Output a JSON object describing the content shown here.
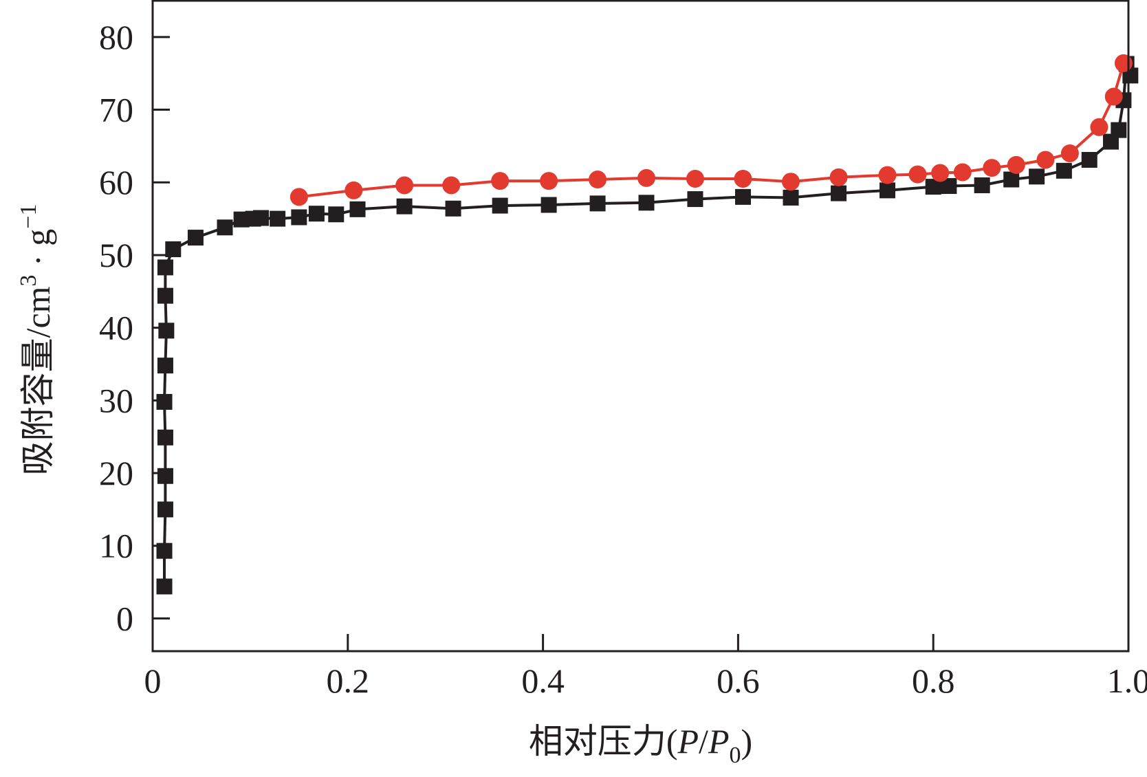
{
  "chart_data": {
    "type": "scatter",
    "xlabel": "相对压力(P/P0)",
    "xlabel_parts": {
      "main": "相对压力(",
      "p1": "P",
      "slash": "/",
      "p2": "P",
      "sub": "0",
      "close": ")"
    },
    "ylabel": "吸附容量/cm3 · g-1",
    "ylabel_parts": {
      "main": "吸附容量/cm",
      "sup1": "3",
      "dot": " · g",
      "sup2": "−1"
    },
    "xlim": [
      0,
      1.0
    ],
    "ylim": [
      -4.5,
      85
    ],
    "xticks": [
      0,
      0.2,
      0.4,
      0.6,
      0.8,
      1.0
    ],
    "xtick_labels": [
      "0",
      "0.2",
      "0.4",
      "0.6",
      "0.8",
      "1.0"
    ],
    "yticks": [
      0,
      10,
      20,
      30,
      40,
      50,
      60,
      70,
      80
    ],
    "ytick_labels": [
      "0",
      "10",
      "20",
      "30",
      "40",
      "50",
      "60",
      "70",
      "80"
    ],
    "grid": false,
    "legend": "none",
    "series": [
      {
        "marker": "square",
        "color": "#231f20",
        "points": [
          [
            0.012,
            4.4
          ],
          [
            0.012,
            9.3
          ],
          [
            0.013,
            15.0
          ],
          [
            0.013,
            19.6
          ],
          [
            0.013,
            24.9
          ],
          [
            0.012,
            29.8
          ],
          [
            0.013,
            34.8
          ],
          [
            0.014,
            39.6
          ],
          [
            0.013,
            44.4
          ],
          [
            0.013,
            48.3
          ],
          [
            0.021,
            50.8
          ],
          [
            0.044,
            52.4
          ],
          [
            0.074,
            53.8
          ],
          [
            0.091,
            54.9
          ],
          [
            0.103,
            55.0
          ],
          [
            0.111,
            55.1
          ],
          [
            0.128,
            55.0
          ],
          [
            0.15,
            55.2
          ],
          [
            0.168,
            55.7
          ],
          [
            0.188,
            55.6
          ],
          [
            0.21,
            56.3
          ],
          [
            0.258,
            56.7
          ],
          [
            0.308,
            56.4
          ],
          [
            0.356,
            56.8
          ],
          [
            0.406,
            56.9
          ],
          [
            0.456,
            57.1
          ],
          [
            0.506,
            57.2
          ],
          [
            0.556,
            57.7
          ],
          [
            0.605,
            58.0
          ],
          [
            0.654,
            57.9
          ],
          [
            0.703,
            58.5
          ],
          [
            0.753,
            58.9
          ],
          [
            0.8,
            59.4
          ],
          [
            0.816,
            59.5
          ],
          [
            0.85,
            59.6
          ],
          [
            0.88,
            60.4
          ],
          [
            0.906,
            60.8
          ],
          [
            0.934,
            61.6
          ],
          [
            0.96,
            63.1
          ],
          [
            0.982,
            65.6
          ],
          [
            0.99,
            67.2
          ],
          [
            0.995,
            71.3
          ],
          [
            0.998,
            76.3
          ],
          [
            1.002,
            74.7
          ]
        ]
      },
      {
        "marker": "circle",
        "color": "#e23a2f",
        "points": [
          [
            0.15,
            58.0
          ],
          [
            0.206,
            58.9
          ],
          [
            0.258,
            59.6
          ],
          [
            0.306,
            59.6
          ],
          [
            0.356,
            60.2
          ],
          [
            0.406,
            60.2
          ],
          [
            0.456,
            60.4
          ],
          [
            0.506,
            60.6
          ],
          [
            0.556,
            60.5
          ],
          [
            0.605,
            60.5
          ],
          [
            0.654,
            60.1
          ],
          [
            0.703,
            60.7
          ],
          [
            0.753,
            61.0
          ],
          [
            0.784,
            61.1
          ],
          [
            0.807,
            61.3
          ],
          [
            0.83,
            61.4
          ],
          [
            0.86,
            62.0
          ],
          [
            0.885,
            62.4
          ],
          [
            0.915,
            63.1
          ],
          [
            0.94,
            64.0
          ],
          [
            0.97,
            67.6
          ],
          [
            0.985,
            71.8
          ],
          [
            0.995,
            76.4
          ]
        ]
      }
    ]
  }
}
